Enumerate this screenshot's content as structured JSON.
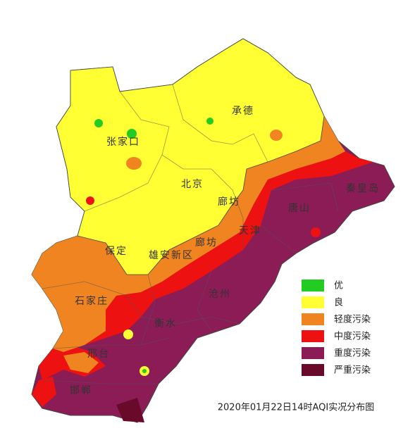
{
  "map_labels": [
    "承德",
    "张家口",
    "北京",
    "廊坊",
    "唐山",
    "秦皇岛",
    "天津",
    "保定",
    "雄安新区",
    "廊坊",
    "沧州",
    "石家庄",
    "衡水",
    "邢台",
    "邯郸"
  ],
  "legend": [
    {
      "label": "优",
      "color": "#22cc22"
    },
    {
      "label": "良",
      "color": "#ffff33"
    },
    {
      "label": "轻度污染",
      "color": "#f08420"
    },
    {
      "label": "中度污染",
      "color": "#ee1111"
    },
    {
      "label": "重度污染",
      "color": "#8b1c56"
    },
    {
      "label": "严重污染",
      "color": "#6a0a2a"
    }
  ],
  "caption": "2020年01月22日14时AQI实况分布图"
}
